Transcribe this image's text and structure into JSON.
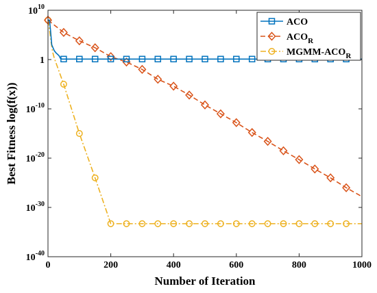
{
  "chart_data": {
    "type": "line",
    "title": "",
    "xlabel": "Number of Iteration",
    "ylabel": "Best Fitness log(f(x))",
    "xlim": [
      0,
      1000
    ],
    "ylim_exponent": [
      -40,
      10
    ],
    "yscale": "log",
    "grid": false,
    "legend_position": "top-right",
    "x_ticks": [
      "0",
      "200",
      "400",
      "600",
      "800",
      "1000"
    ],
    "y_ticks": [
      {
        "base": "10",
        "exp": "10"
      },
      {
        "base": "1",
        "exp": "0"
      },
      {
        "base": "10",
        "exp": "-10"
      },
      {
        "base": "10",
        "exp": "-20"
      },
      {
        "base": "10",
        "exp": "-30"
      },
      {
        "base": "10",
        "exp": "-40"
      }
    ],
    "series": [
      {
        "name": "ACO",
        "legend_main": "ACO",
        "legend_sub": "",
        "color": "#0072BD",
        "line_style": "solid",
        "marker": "square",
        "points": [
          [
            0,
            8
          ],
          [
            5,
            8
          ],
          [
            8,
            6
          ],
          [
            12,
            3
          ],
          [
            20,
            1.8
          ],
          [
            25,
            1.4
          ],
          [
            35,
            0.8
          ],
          [
            40,
            0.2
          ],
          [
            45,
            0.1
          ],
          [
            50,
            0.1
          ],
          [
            1000,
            0.1
          ]
        ],
        "marker_x": [
          50,
          100,
          150,
          200,
          250,
          300,
          350,
          400,
          450,
          500,
          550,
          600,
          650,
          700,
          750,
          800,
          850,
          900,
          950
        ]
      },
      {
        "name": "ACO_R",
        "legend_main": "ACO",
        "legend_sub": "R",
        "color": "#D95319",
        "line_style": "dashed",
        "marker": "diamond",
        "points": [
          [
            0,
            8
          ],
          [
            50,
            5.5
          ],
          [
            100,
            3.8
          ],
          [
            150,
            2.4
          ],
          [
            200,
            0.6
          ],
          [
            250,
            -0.5
          ],
          [
            300,
            -2
          ],
          [
            350,
            -4
          ],
          [
            400,
            -5.4
          ],
          [
            450,
            -7.2
          ],
          [
            500,
            -9.2
          ],
          [
            550,
            -11
          ],
          [
            600,
            -12.8
          ],
          [
            650,
            -14.8
          ],
          [
            700,
            -16.6
          ],
          [
            750,
            -18.5
          ],
          [
            800,
            -20.3
          ],
          [
            850,
            -22.2
          ],
          [
            900,
            -24
          ],
          [
            950,
            -26
          ],
          [
            1000,
            -27.8
          ]
        ],
        "marker_x": [
          0,
          50,
          100,
          150,
          200,
          250,
          300,
          350,
          400,
          450,
          500,
          550,
          600,
          650,
          700,
          750,
          800,
          850,
          900,
          950
        ]
      },
      {
        "name": "MGMM-ACO_R",
        "legend_main": "MGMM-ACO",
        "legend_sub": "R",
        "color": "#EDB120",
        "line_style": "dashdot",
        "marker": "circle",
        "points": [
          [
            0,
            8
          ],
          [
            5,
            6
          ],
          [
            10,
            3.5
          ],
          [
            15,
            1.5
          ],
          [
            20,
            0.3
          ],
          [
            50,
            -5
          ],
          [
            100,
            -15
          ],
          [
            150,
            -24
          ],
          [
            200,
            -33.3
          ],
          [
            1000,
            -33.3
          ]
        ],
        "marker_x": [
          0,
          50,
          100,
          150,
          200,
          250,
          300,
          350,
          400,
          450,
          500,
          550,
          600,
          650,
          700,
          750,
          800,
          850,
          900,
          950
        ]
      }
    ]
  }
}
